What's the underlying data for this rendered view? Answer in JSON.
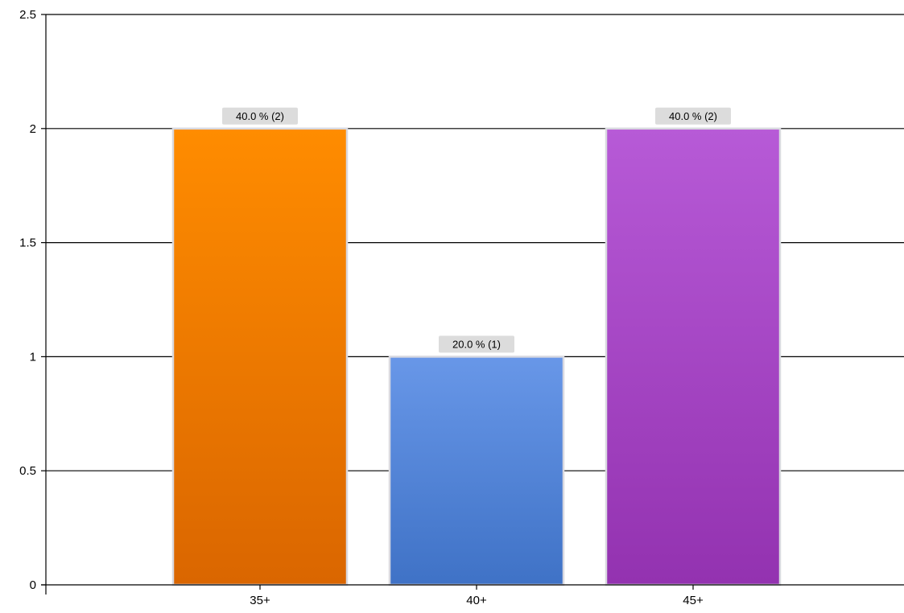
{
  "chart_data": {
    "type": "bar",
    "title": "",
    "xlabel": "",
    "ylabel": "",
    "categories": [
      "35+",
      "40+",
      "45+"
    ],
    "values": [
      2,
      1,
      2
    ],
    "data_labels": [
      "40.0 % (2)",
      "20.0 % (1)",
      "40.0 % (2)"
    ],
    "ylim": [
      0,
      2.5
    ],
    "yticks": [
      "0",
      "0.5",
      "1",
      "1.5",
      "2",
      "2.5"
    ],
    "grid": true,
    "legend": "none",
    "bar_colors": [
      {
        "top": "#ff8c00",
        "bottom": "#da6600"
      },
      {
        "top": "#6897e8",
        "bottom": "#3f72c6"
      },
      {
        "top": "#b75ad7",
        "bottom": "#9332b0"
      }
    ]
  }
}
